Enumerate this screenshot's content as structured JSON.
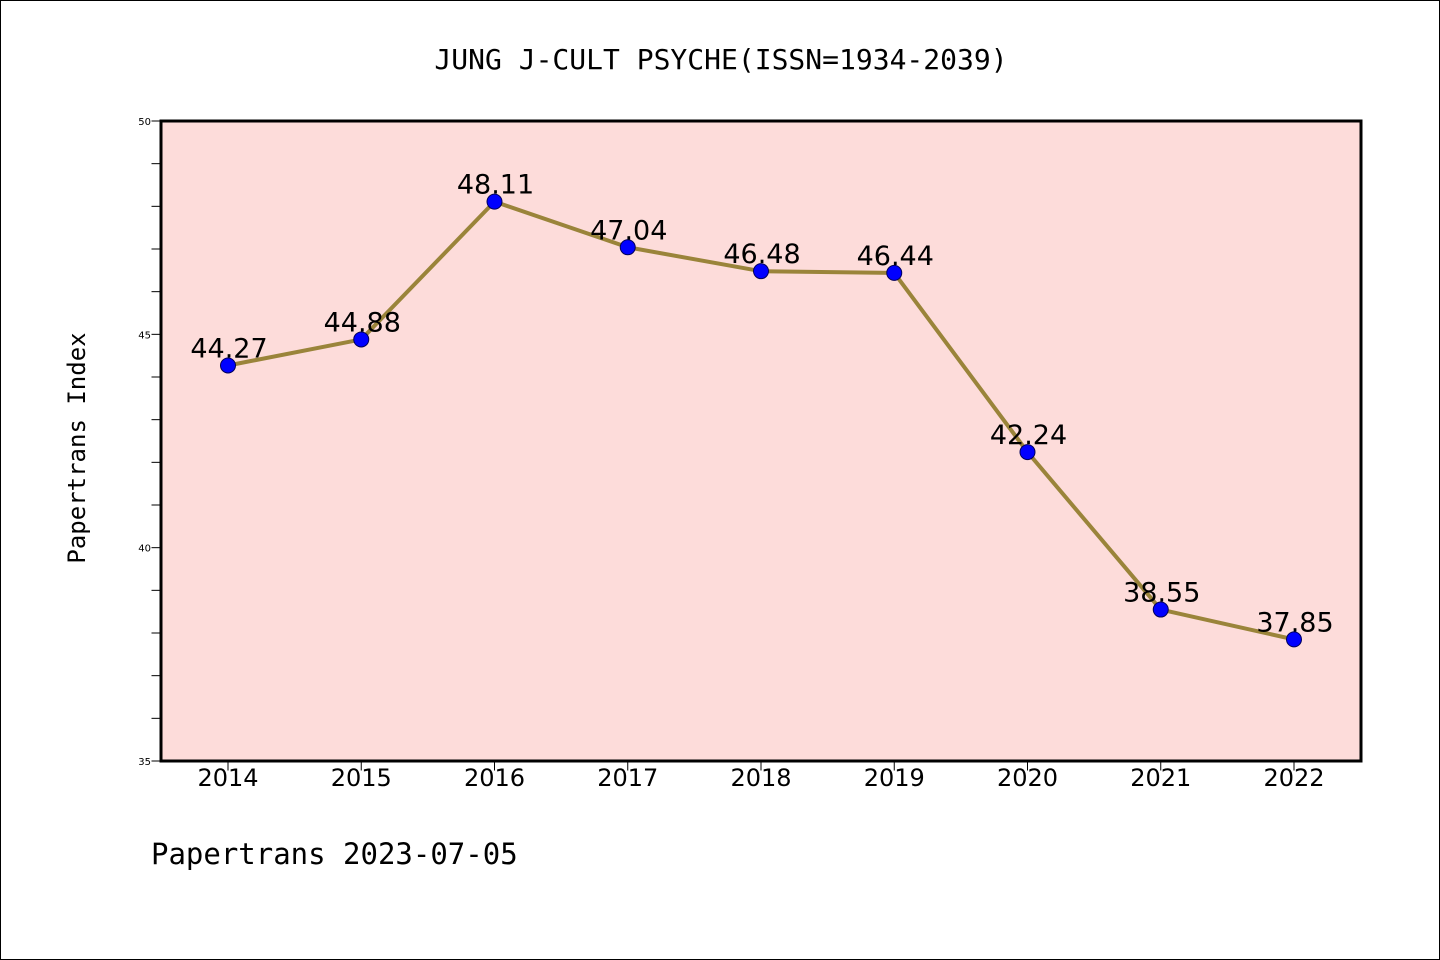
{
  "chart_data": {
    "type": "line",
    "title": "JUNG J-CULT PSYCHE(ISSN=1934-2039)",
    "xlabel": "",
    "ylabel": "Papertrans Index",
    "categories": [
      "2014",
      "2015",
      "2016",
      "2017",
      "2018",
      "2019",
      "2020",
      "2021",
      "2022"
    ],
    "series": [
      {
        "values": [
          44.27,
          44.88,
          48.11,
          47.04,
          46.48,
          46.44,
          42.24,
          38.55,
          37.85
        ],
        "data_labels": [
          "44.27",
          "44.88",
          "48.11",
          "47.04",
          "46.48",
          "46.44",
          "42.24",
          "38.55",
          "37.85"
        ]
      }
    ],
    "ylim": [
      35,
      50
    ],
    "yticks": [
      "35",
      "40",
      "45",
      "50"
    ],
    "grid": false,
    "legend": "none",
    "colors": {
      "plot_background": "#fddcda",
      "line": "#9a843a",
      "marker": "#0000ff",
      "axis": "#000000"
    }
  },
  "footer": {
    "text": "Papertrans 2023-07-05"
  }
}
